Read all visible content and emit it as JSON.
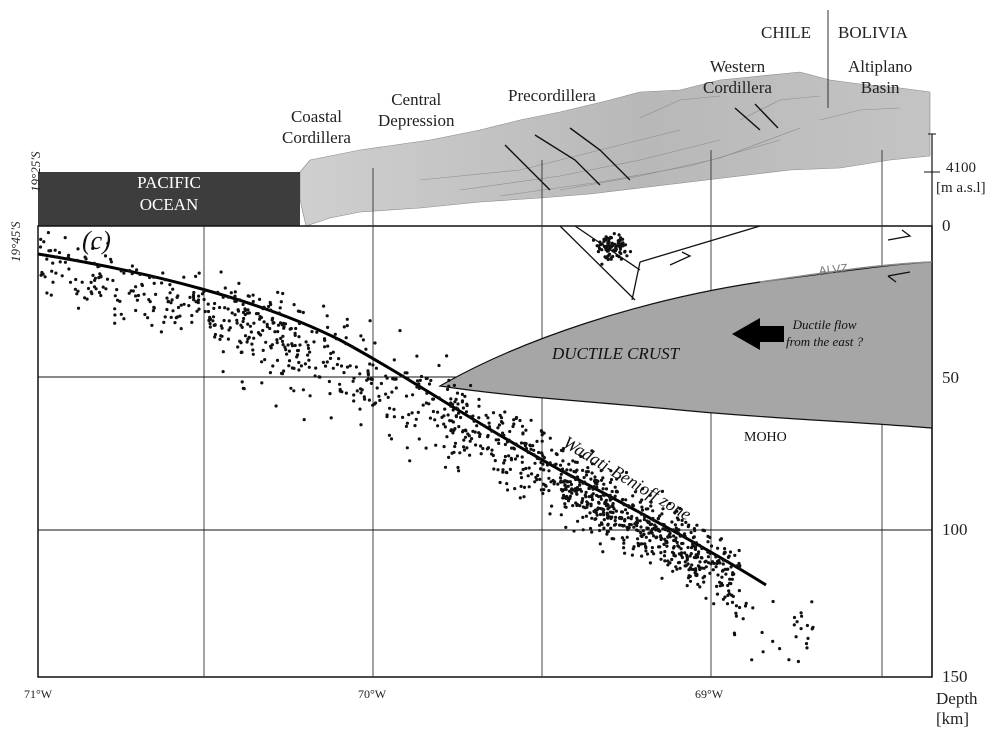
{
  "regions": {
    "coastal_cordillera": [
      "Coastal",
      "Cordillera"
    ],
    "central_depression": [
      "Central",
      "Depression"
    ],
    "precordillera": "Precordillera",
    "western_cordillera": [
      "Western",
      "Cordillera"
    ],
    "altiplano_basin": [
      "Altiplano",
      "Basin"
    ],
    "chile": "CHILE",
    "bolivia": "BOLIVIA"
  },
  "ocean": [
    "PACIFIC",
    "OCEAN"
  ],
  "latitudes": [
    "19°45'S",
    "19°25'S"
  ],
  "elevation": {
    "value": "4100",
    "unit": "[m a.s.l]"
  },
  "panel_label": "(c)",
  "depth_ticks": [
    "0",
    "50",
    "100",
    "150"
  ],
  "depth_axis": [
    "Depth",
    "[km]"
  ],
  "longitude_ticks": [
    "71°W",
    "70°W",
    "69°W"
  ],
  "annotations": {
    "ductile_crust": "DUCTILE CRUST",
    "ductile_flow": [
      "Ductile flow",
      "from the east ?"
    ],
    "alvz": "ALVZ",
    "moho": "MOHO",
    "slab": "Wadati-Benioff zone"
  },
  "colors": {
    "ocean": "#3d3d3d",
    "ductile_crust": "#a6a6a6",
    "topography": "#bdbdbd",
    "seismicity": "#111111"
  }
}
